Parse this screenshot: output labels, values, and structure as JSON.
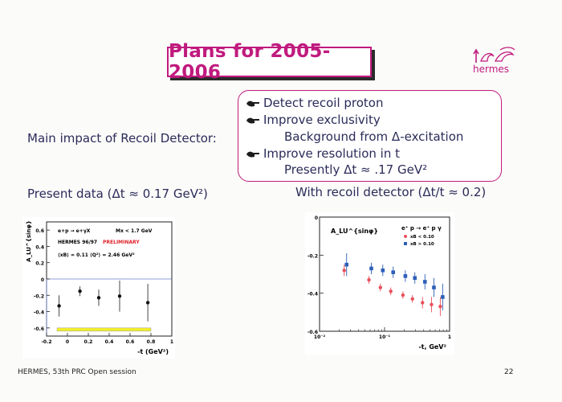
{
  "title": "Plans for 2005-2006",
  "logo_text": "hermes",
  "plans": {
    "items": [
      {
        "text": "Detect recoil proton"
      },
      {
        "text": "Improve exclusivity"
      },
      {
        "text": "Improve resolution in t"
      }
    ],
    "sub_items": {
      "background": "Background from Δ-excitation",
      "presently": "Presently Δt ≈ .17 GeV²"
    }
  },
  "main_impact_label": "Main impact of Recoil Detector:",
  "present_data_label": "Present data (Δt ≈ 0.17 GeV²)",
  "with_recoil_label": "With recoil detector (Δt/t ≈ 0.2)",
  "footer": {
    "session": "HERMES, 53th PRC Open session",
    "page": "22"
  },
  "colors": {
    "accent": "#c01a7e",
    "text": "#2b2b5a",
    "series_low": "#e8505b",
    "series_high": "#2d5fb8",
    "band": "#f4ef2a"
  },
  "chart_data": [
    {
      "type": "scatter",
      "ylabel": "A_LU^{sinφ}",
      "xlabel": "-t (GeV²)",
      "xlim": [
        -0.2,
        1.0
      ],
      "ylim": [
        -0.7,
        0.7
      ],
      "x_ticks": [
        "-0.2",
        "0",
        "0.2",
        "0.4",
        "0.6",
        "0.8",
        "1"
      ],
      "y_ticks": [
        "0.6",
        "0.4",
        "0.2",
        "0",
        "-0.2",
        "-0.4",
        "-0.6"
      ],
      "annotations": {
        "reaction": "e+p → e+γX",
        "mx": "Mx < 1.7 GeV",
        "experiment": "HERMES 96/97",
        "preliminary": "PRELIMINARY",
        "kinematics": "⟨xB⟩ = 0.11   ⟨Q²⟩ = 2.46 GeV²"
      },
      "points": [
        {
          "x": -0.08,
          "y": -0.33,
          "err": 0.13
        },
        {
          "x": 0.12,
          "y": -0.15,
          "err": 0.06
        },
        {
          "x": 0.3,
          "y": -0.23,
          "err": 0.1
        },
        {
          "x": 0.5,
          "y": -0.21,
          "err": 0.19
        },
        {
          "x": 0.77,
          "y": -0.29,
          "err": 0.23
        }
      ],
      "band": {
        "x_from": -0.1,
        "x_to": 0.8,
        "y_low": -0.63,
        "y_high": -0.6
      }
    },
    {
      "type": "scatter",
      "ylabel": "A_LU^{sinφ}",
      "xlabel": "-t, GeV²",
      "xscale": "log",
      "xlim": [
        0.01,
        1
      ],
      "ylim": [
        -0.6,
        0
      ],
      "x_ticks": [
        "10⁻²",
        "10⁻¹",
        "1"
      ],
      "y_ticks": [
        "0",
        "-0.2",
        "-0.4",
        "-0.6"
      ],
      "annotations": {
        "reaction": "e⁺ p → e⁺ p γ"
      },
      "series": [
        {
          "name": "xB < 0.10",
          "color": "#e8505b",
          "marker": "circle",
          "x": [
            0.025,
            0.06,
            0.09,
            0.13,
            0.2,
            0.28,
            0.4,
            0.55,
            0.75
          ],
          "y": [
            -0.28,
            -0.33,
            -0.37,
            -0.39,
            -0.41,
            -0.43,
            -0.45,
            -0.46,
            -0.47
          ],
          "err": [
            0.03,
            0.02,
            0.02,
            0.02,
            0.02,
            0.02,
            0.03,
            0.04,
            0.05
          ]
        },
        {
          "name": "xB > 0.10",
          "color": "#2d5fb8",
          "marker": "square",
          "x": [
            0.025,
            0.06,
            0.09,
            0.13,
            0.2,
            0.28,
            0.4,
            0.55,
            0.75
          ],
          "y": [
            -0.25,
            -0.27,
            -0.28,
            -0.29,
            -0.31,
            -0.32,
            -0.34,
            -0.37,
            -0.42
          ],
          "err": [
            0.06,
            0.03,
            0.03,
            0.03,
            0.03,
            0.03,
            0.04,
            0.05,
            0.07
          ]
        }
      ]
    }
  ]
}
